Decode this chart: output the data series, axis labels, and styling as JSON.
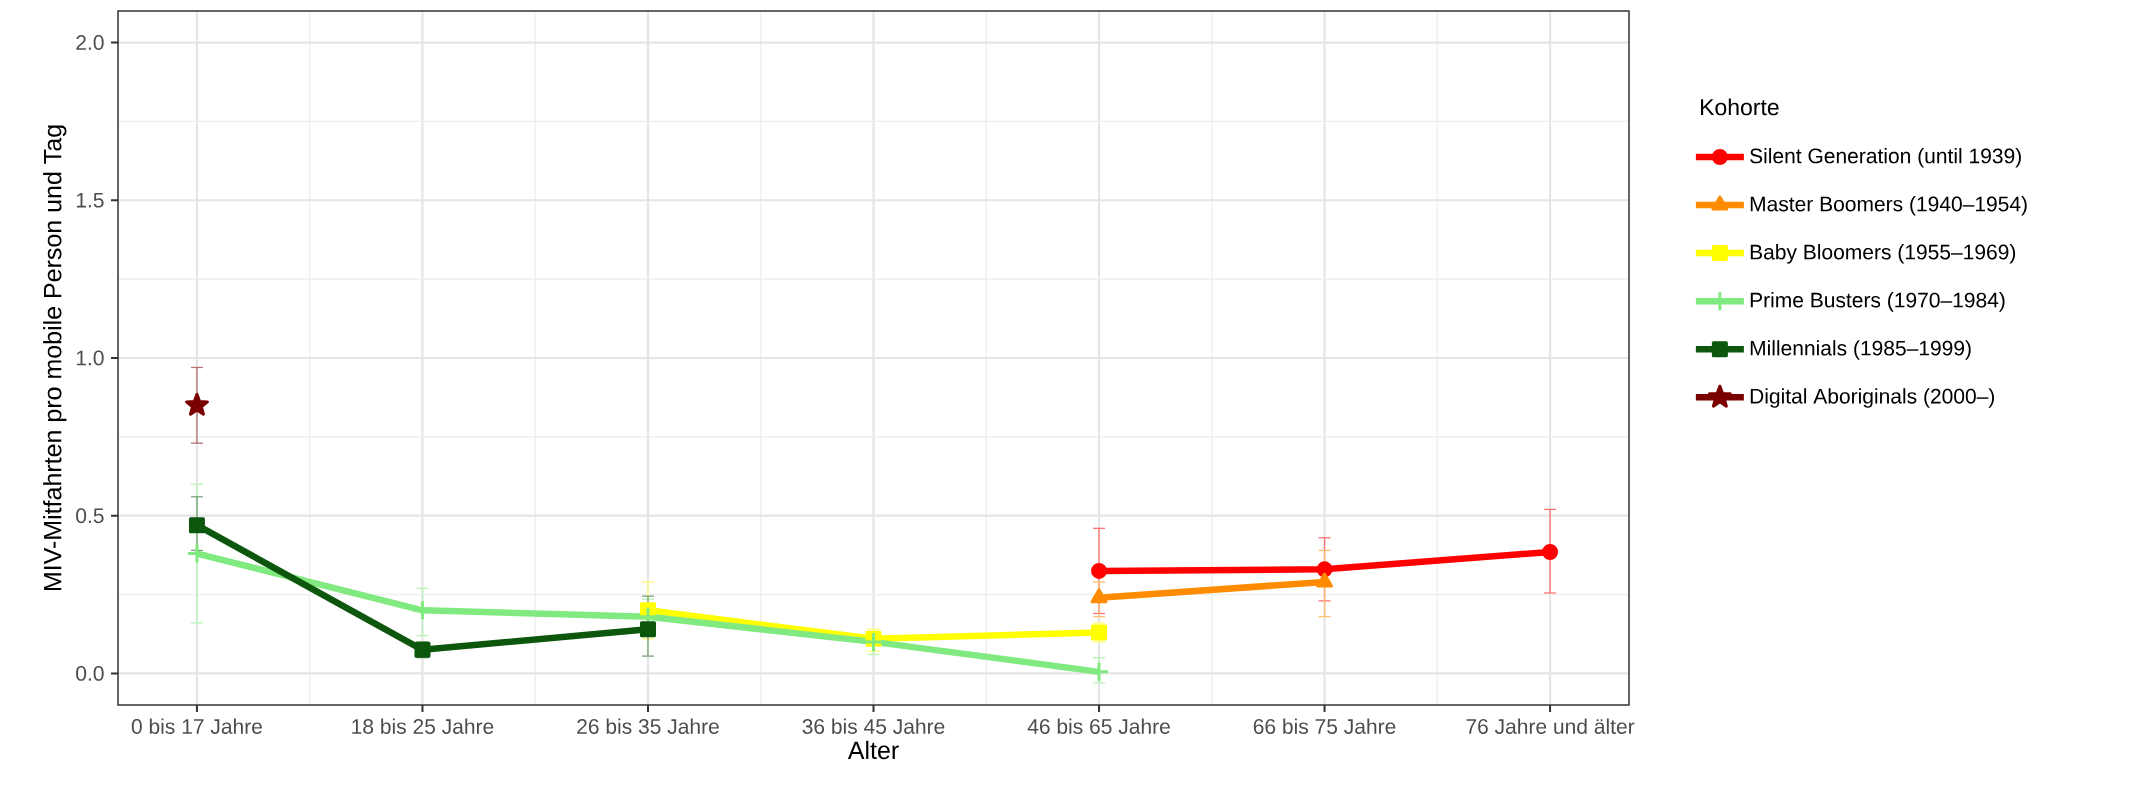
{
  "chart_data": {
    "type": "line",
    "xlabel": "Alter",
    "ylabel": "MIV-Mitfahrten pro mobile Person und Tag",
    "legend_title": "Kohorte",
    "categories": [
      "0 bis 17 Jahre",
      "18 bis 25 Jahre",
      "26 bis 35 Jahre",
      "36 bis 45 Jahre",
      "46 bis 65 Jahre",
      "66 bis 75 Jahre",
      "76 Jahre und älter"
    ],
    "ylim": [
      -0.1,
      2.1
    ],
    "yticks": [
      {
        "value": 0,
        "label": "0.0"
      },
      0.5,
      {
        "value": 1,
        "label": "1.0"
      },
      1.5,
      {
        "value": 2,
        "label": "2.0"
      }
    ],
    "grid": true,
    "legend": "right",
    "line_style": "solid",
    "series": [
      {
        "name": "Silent Generation (until 1939)",
        "color": "#ff0000",
        "marker": "circle",
        "values": [
          null,
          null,
          null,
          null,
          0.325,
          0.33,
          0.385
        ],
        "errors": [
          null,
          null,
          null,
          null,
          [
            0.19,
            0.46
          ],
          [
            0.23,
            0.43
          ],
          [
            0.255,
            0.52
          ]
        ]
      },
      {
        "name": "Master Boomers (1940–1954)",
        "color": "#ff8c00",
        "marker": "triangle",
        "values": [
          null,
          null,
          null,
          null,
          0.24,
          0.29,
          null
        ],
        "errors": [
          null,
          null,
          null,
          null,
          [
            0.18,
            0.29
          ],
          [
            0.18,
            0.39
          ],
          null
        ]
      },
      {
        "name": "Baby Bloomers (1955–1969)",
        "color": "#ffff00",
        "marker": "square",
        "values": [
          null,
          null,
          0.2,
          0.11,
          0.13,
          null,
          null
        ],
        "errors": [
          null,
          null,
          [
            0.11,
            0.29
          ],
          [
            0.07,
            0.14
          ],
          [
            0.1,
            0.16
          ],
          null,
          null
        ]
      },
      {
        "name": "Prime Busters (1970–1984)",
        "color": "#80ea80",
        "marker": "cross",
        "values": [
          0.38,
          0.2,
          0.18,
          0.1,
          0.005,
          null,
          null
        ],
        "errors": [
          [
            0.16,
            0.6
          ],
          [
            0.12,
            0.27
          ],
          [
            0.12,
            0.235
          ],
          [
            0.06,
            0.13
          ],
          [
            -0.03,
            0.05
          ],
          null,
          null
        ]
      },
      {
        "name": "Millennials (1985–1999)",
        "color": "#0d560d",
        "marker": "square",
        "values": [
          0.47,
          0.075,
          0.14,
          null,
          null,
          null,
          null
        ],
        "errors": [
          [
            0.39,
            0.56
          ],
          [
            0.05,
            0.1
          ],
          [
            0.055,
            0.245
          ],
          null,
          null,
          null,
          null
        ]
      },
      {
        "name": "Digital Aboriginals (2000–)",
        "color": "#7a0000",
        "marker": "star",
        "values": [
          0.85,
          null,
          null,
          null,
          null,
          null,
          null
        ],
        "errors": [
          [
            0.73,
            0.97
          ],
          null,
          null,
          null,
          null,
          null,
          null
        ]
      }
    ]
  }
}
